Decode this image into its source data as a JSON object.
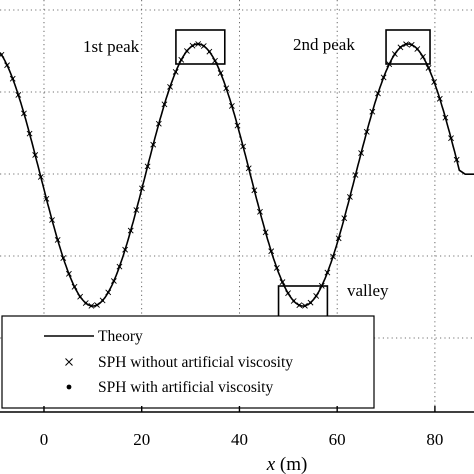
{
  "chart_data": {
    "type": "line",
    "xlabel_var": "x",
    "xlabel_unit": " (m)",
    "xlim": [
      -9,
      88
    ],
    "xticks": [
      "0",
      "20",
      "40",
      "60",
      "80"
    ],
    "xtick_values": [
      0,
      20,
      40,
      60,
      80
    ],
    "wave": {
      "wavelength": 43,
      "peak_x": [
        31.5,
        74.5
      ],
      "valley_x": [
        10,
        53
      ],
      "right_end_x": 85
    },
    "series": [
      {
        "name": "Theory",
        "style": "line",
        "color": "#000000"
      },
      {
        "name": "SPH without artificial viscosity",
        "style": "x-marker",
        "color": "#000000"
      },
      {
        "name": "SPH with artificial viscosity",
        "style": "dot-marker",
        "color": "#000000"
      }
    ],
    "annotations": [
      {
        "label": "1st peak",
        "box_x": [
          27,
          37
        ]
      },
      {
        "label": "2nd peak",
        "box_x": [
          70,
          79
        ]
      },
      {
        "label": "valley",
        "box_x": [
          48,
          58
        ]
      }
    ],
    "grid": true,
    "legend_position": "bottom-left"
  }
}
